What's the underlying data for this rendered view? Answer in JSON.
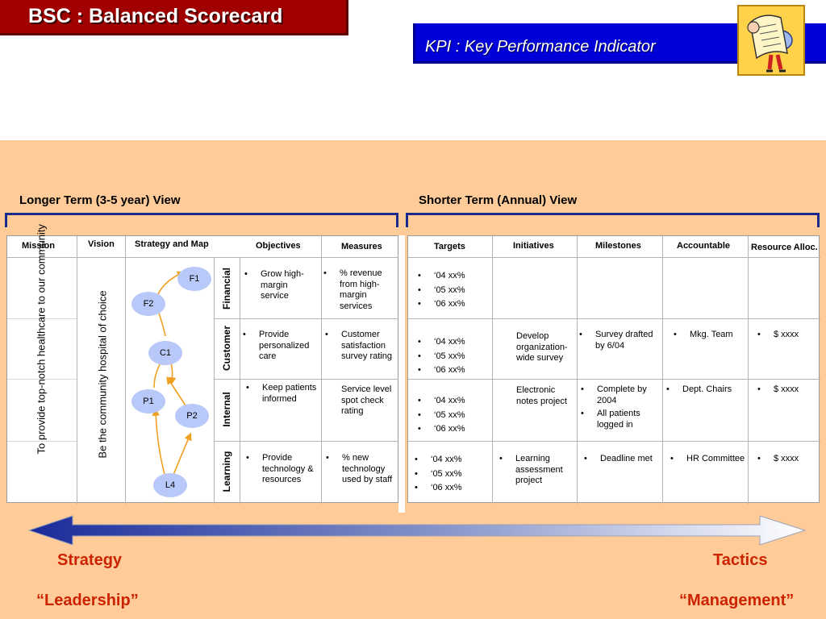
{
  "header": {
    "title": "BSC : Balanced Scorecard",
    "subtitle": "KPI : Key Performance Indicator"
  },
  "clipart_icon": "scroll-reading-figure-icon",
  "headings": {
    "long_term": "Longer Term (3-5 year) View",
    "short_term": "Shorter Term (Annual) View"
  },
  "columns": {
    "mission": "Mission",
    "vision": "Vision",
    "strategy_map": "Strategy and Map",
    "objectives": "Objectives",
    "measures": "Measures",
    "targets": "Targets",
    "initiatives": "Initiatives",
    "milestones": "Milestones",
    "accountable": "Accountable",
    "resource": "Resource Alloc."
  },
  "mission_text": "To provide top-notch healthcare to our community",
  "vision_text": "Be the community hospital of choice",
  "map_nodes": {
    "f1": "F1",
    "f2": "F2",
    "c1": "C1",
    "p1": "P1",
    "p2": "P2",
    "l4": "L4"
  },
  "rows": [
    {
      "perspective": "Financial",
      "objective": "Grow high-margin service",
      "measure": "% revenue from high-margin services",
      "targets": [
        "‘04   xx%",
        "‘05   xx%",
        "‘06   xx%"
      ],
      "initiative": "",
      "milestones": [],
      "accountable": "",
      "resource": ""
    },
    {
      "perspective": "Customer",
      "objective": "Provide personalized care",
      "measure": "Customer satisfaction survey rating",
      "targets": [
        "‘04   xx%",
        "‘05   xx%",
        "‘06   xx%"
      ],
      "initiative": "Develop organization-wide survey",
      "milestones": [
        "Survey drafted by 6/04"
      ],
      "accountable": "Mkg. Team",
      "resource": "$ xxxx"
    },
    {
      "perspective": "Internal",
      "objective": "Keep patients informed",
      "measure": "Service level spot check rating",
      "targets": [
        "‘04   xx%",
        "‘05   xx%",
        "‘06   xx%"
      ],
      "initiative": "Electronic notes project",
      "milestones": [
        "Complete by 2004",
        "All patients logged in"
      ],
      "accountable": "Dept. Chairs",
      "resource": "$ xxxx"
    },
    {
      "perspective": "Learning",
      "objective": "Provide technology & resources",
      "measure": "% new technology used by staff",
      "targets": [
        "‘04   xx%",
        "‘05   xx%",
        "‘06   xx%"
      ],
      "initiative": "Learning assessment project",
      "milestones": [
        "Deadline met"
      ],
      "accountable": "HR Committee",
      "resource": "$ xxxx"
    }
  ],
  "footer": {
    "strategy": "Strategy",
    "tactics": "Tactics",
    "leadership": "“Leadership”",
    "management": "“Management”"
  },
  "colors": {
    "title_red": "#a10000",
    "kpi_blue": "#0000d8",
    "panel_peach": "#ffcc99",
    "node_blue": "#b8c8f8",
    "arrow_orange": "#f0a020",
    "label_red": "#cc2200"
  }
}
